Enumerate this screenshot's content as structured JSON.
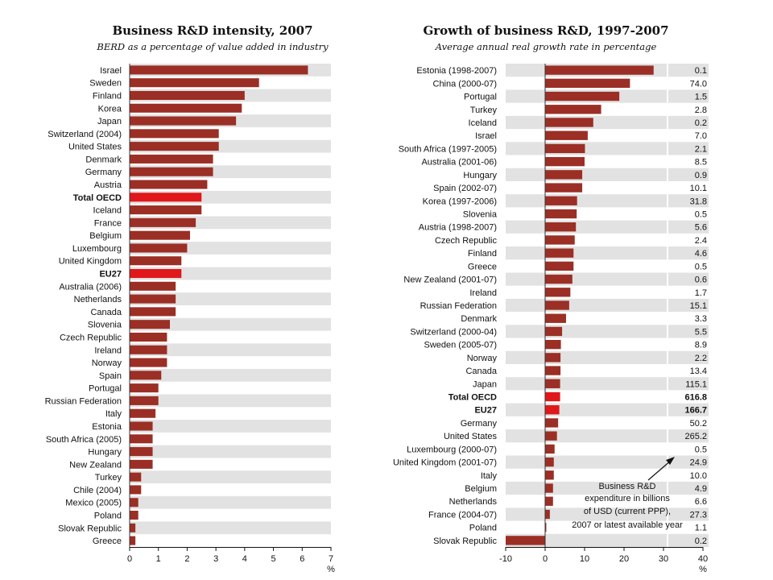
{
  "chart_data": [
    {
      "type": "bar",
      "orientation": "horizontal",
      "title": "Business R&D intensity, 2007",
      "subtitle": "BERD as a percentage of value added in industry",
      "unit_label": "%",
      "xlim": [
        0,
        7
      ],
      "xticks": [
        0,
        1,
        2,
        3,
        4,
        5,
        6,
        7
      ],
      "colors": {
        "bar": "#9b2f25",
        "highlight": "#e0181b",
        "stripe": "#e2e2e2"
      },
      "categories": [
        "Israel",
        "Sweden",
        "Finland",
        "Korea",
        "Japan",
        "Switzerland (2004)",
        "United States",
        "Denmark",
        "Germany",
        "Austria",
        "Total OECD",
        "Iceland",
        "France",
        "Belgium",
        "Luxembourg",
        "United Kingdom",
        "EU27",
        "Australia (2006)",
        "Netherlands",
        "Canada",
        "Slovenia",
        "Czech Republic",
        "Ireland",
        "Norway",
        "Spain",
        "Portugal",
        "Russian Federation",
        "Italy",
        "Estonia",
        "South Africa (2005)",
        "Hungary",
        "New Zealand",
        "Turkey",
        "Chile (2004)",
        "Mexico (2005)",
        "Poland",
        "Slovak Republic",
        "Greece"
      ],
      "values": [
        6.2,
        4.5,
        4.0,
        3.9,
        3.7,
        3.1,
        3.1,
        2.9,
        2.9,
        2.7,
        2.5,
        2.5,
        2.3,
        2.1,
        2.0,
        1.8,
        1.8,
        1.6,
        1.6,
        1.6,
        1.4,
        1.3,
        1.3,
        1.3,
        1.1,
        1.0,
        1.0,
        0.9,
        0.8,
        0.8,
        0.8,
        0.8,
        0.4,
        0.4,
        0.3,
        0.3,
        0.2,
        0.2
      ],
      "highlight": [
        "Total OECD",
        "EU27"
      ]
    },
    {
      "type": "bar",
      "orientation": "horizontal",
      "title": "Growth of business R&D, 1997-2007",
      "subtitle": "Average annual real growth rate in percentage",
      "unit_label": "%",
      "xlim": [
        -10,
        40
      ],
      "xticks": [
        -10,
        0,
        10,
        20,
        30,
        40
      ],
      "colors": {
        "bar": "#9b2f25",
        "highlight": "#e0181b",
        "stripe": "#e2e2e2"
      },
      "categories": [
        "Estonia (1998-2007)",
        "China (2000-07)",
        "Portugal",
        "Turkey",
        "Iceland",
        "Israel",
        "South Africa (1997-2005)",
        "Australia (2001-06)",
        "Hungary",
        "Spain (2002-07)",
        "Korea (1997-2006)",
        "Slovenia",
        "Austria (1998-2007)",
        "Czech Republic",
        "Finland",
        "Greece",
        "New Zealand (2001-07)",
        "Ireland",
        "Russian Federation",
        "Denmark",
        "Switzerland (2000-04)",
        "Sweden (2005-07)",
        "Norway",
        "Canada",
        "Japan",
        "Total OECD",
        "EU27",
        "Germany",
        "United States",
        "Luxembourg (2000-07)",
        "United Kingdom (2001-07)",
        "Italy",
        "Belgium",
        "Netherlands",
        "France (2004-07)",
        "Poland",
        "Slovak Republic"
      ],
      "values": [
        27.5,
        21.5,
        18.8,
        14.2,
        12.2,
        10.8,
        10.1,
        10.0,
        9.4,
        9.4,
        8.1,
        8.0,
        7.8,
        7.5,
        7.2,
        7.2,
        6.9,
        6.4,
        6.1,
        5.3,
        4.3,
        4.0,
        3.9,
        3.9,
        3.8,
        3.8,
        3.6,
        3.3,
        3.0,
        2.4,
        2.2,
        2.2,
        2.0,
        2.0,
        1.2,
        0.3,
        -10.0
      ],
      "expenditure_billions_usd": [
        "0.1",
        "74.0",
        "1.5",
        "2.8",
        "0.2",
        "7.0",
        "2.1",
        "8.5",
        "0.9",
        "10.1",
        "31.8",
        "0.5",
        "5.6",
        "2.4",
        "4.6",
        "0.5",
        "0.6",
        "1.7",
        "15.1",
        "3.3",
        "5.5",
        "8.9",
        "2.2",
        "13.4",
        "115.1",
        "616.8",
        "166.7",
        "50.2",
        "265.2",
        "0.5",
        "24.9",
        "10.0",
        "4.9",
        "6.6",
        "27.3",
        "1.1",
        "0.2"
      ],
      "highlight": [
        "Total OECD",
        "EU27"
      ],
      "annotation": [
        "Business R&D",
        "expenditure in billions",
        "of USD (current PPP),",
        "2007 or latest available year"
      ]
    }
  ]
}
